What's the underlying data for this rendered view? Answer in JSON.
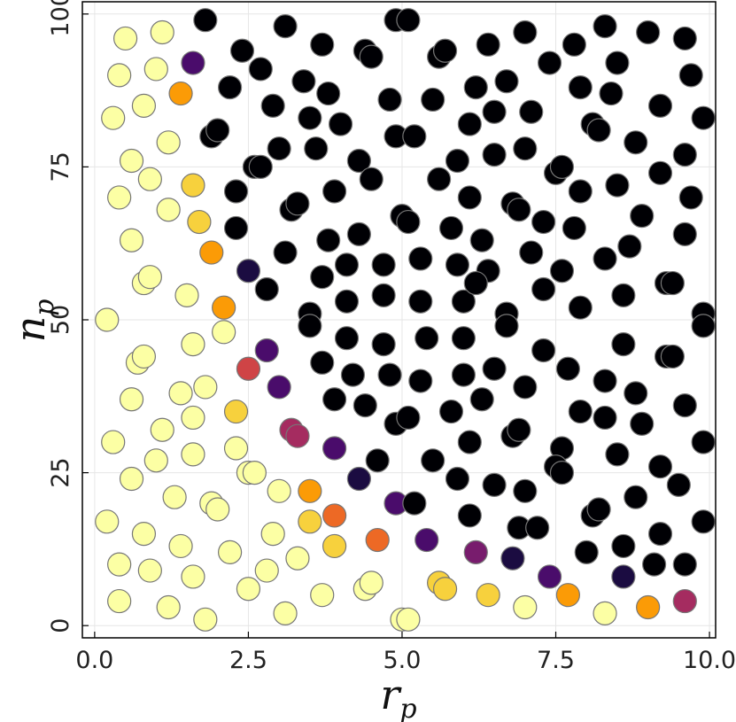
{
  "chart_data": {
    "type": "scatter",
    "title": "",
    "xlabel": {
      "base": "r",
      "sub": "p"
    },
    "ylabel": {
      "base": "n",
      "sub": "p"
    },
    "xlim": [
      -0.2,
      10.1
    ],
    "ylim": [
      -2,
      102
    ],
    "x_ticks": [
      0.0,
      2.5,
      5.0,
      7.5,
      10.0
    ],
    "x_tick_labels": [
      "0.0",
      "2.5",
      "5.0",
      "7.5",
      "10.0"
    ],
    "y_ticks": [
      0,
      25,
      50,
      75,
      100
    ],
    "y_tick_labels": [
      "0",
      "25",
      "50",
      "75",
      "100"
    ],
    "grid": true,
    "colormap": "inferno",
    "colormap_colors": [
      "#fcffa4",
      "#f7d13d",
      "#fb9b06",
      "#ed6925",
      "#cf4446",
      "#a52c60",
      "#781c6d",
      "#4a0c6b",
      "#1b0c41",
      "#000004"
    ],
    "marker_edge_color": "#777777",
    "points": [
      [
        0.5,
        96,
        0
      ],
      [
        1.1,
        97,
        0
      ],
      [
        1.8,
        99,
        9
      ],
      [
        3.1,
        98,
        9
      ],
      [
        4.9,
        99,
        9
      ],
      [
        5.1,
        99,
        9
      ],
      [
        7.0,
        97,
        9
      ],
      [
        8.3,
        98,
        9
      ],
      [
        9.0,
        97,
        9
      ],
      [
        9.6,
        96,
        9
      ],
      [
        0.4,
        90,
        0
      ],
      [
        1.0,
        91,
        0
      ],
      [
        1.6,
        92,
        7
      ],
      [
        2.4,
        94,
        9
      ],
      [
        2.7,
        91,
        9
      ],
      [
        3.4,
        89,
        9
      ],
      [
        3.7,
        95,
        9
      ],
      [
        4.4,
        94,
        9
      ],
      [
        4.5,
        93,
        9
      ],
      [
        5.6,
        93,
        9
      ],
      [
        5.7,
        94,
        9
      ],
      [
        6.4,
        95,
        9
      ],
      [
        6.7,
        89,
        9
      ],
      [
        7.4,
        92,
        9
      ],
      [
        7.8,
        95,
        9
      ],
      [
        8.5,
        92,
        9
      ],
      [
        9.7,
        90,
        9
      ],
      [
        0.3,
        83,
        0
      ],
      [
        0.8,
        85,
        0
      ],
      [
        1.4,
        87,
        2
      ],
      [
        2.2,
        88,
        9
      ],
      [
        2.9,
        85,
        9
      ],
      [
        3.5,
        83,
        9
      ],
      [
        3.8,
        87,
        9
      ],
      [
        4.0,
        82,
        9
      ],
      [
        4.8,
        86,
        9
      ],
      [
        5.5,
        86,
        9
      ],
      [
        6.2,
        88,
        9
      ],
      [
        6.5,
        84,
        9
      ],
      [
        7.1,
        84,
        9
      ],
      [
        7.9,
        88,
        9
      ],
      [
        8.1,
        82,
        9
      ],
      [
        8.4,
        87,
        9
      ],
      [
        9.2,
        85,
        9
      ],
      [
        9.9,
        83,
        9
      ],
      [
        1.2,
        79,
        0
      ],
      [
        1.9,
        80,
        9
      ],
      [
        2.0,
        81,
        9
      ],
      [
        0.6,
        76,
        0
      ],
      [
        3.0,
        78,
        9
      ],
      [
        3.6,
        78,
        9
      ],
      [
        4.3,
        76,
        9
      ],
      [
        4.9,
        80,
        9
      ],
      [
        5.2,
        80,
        9
      ],
      [
        5.9,
        76,
        9
      ],
      [
        6.1,
        82,
        9
      ],
      [
        6.5,
        77,
        9
      ],
      [
        7.0,
        78,
        9
      ],
      [
        7.5,
        74,
        9
      ],
      [
        7.6,
        75,
        9
      ],
      [
        8.2,
        81,
        9
      ],
      [
        8.8,
        79,
        9
      ],
      [
        9.2,
        74,
        9
      ],
      [
        9.6,
        77,
        9
      ],
      [
        0.4,
        70,
        0
      ],
      [
        0.9,
        73,
        0
      ],
      [
        1.6,
        72,
        1
      ],
      [
        2.3,
        71,
        9
      ],
      [
        2.6,
        75,
        9
      ],
      [
        2.7,
        75,
        9
      ],
      [
        3.2,
        68,
        9
      ],
      [
        3.3,
        69,
        9
      ],
      [
        3.9,
        71,
        9
      ],
      [
        4.5,
        73,
        9
      ],
      [
        5.0,
        67,
        9
      ],
      [
        5.1,
        66,
        9
      ],
      [
        5.6,
        73,
        9
      ],
      [
        6.1,
        70,
        9
      ],
      [
        6.8,
        69,
        9
      ],
      [
        6.9,
        68,
        9
      ],
      [
        7.3,
        66,
        9
      ],
      [
        7.9,
        71,
        9
      ],
      [
        8.5,
        72,
        9
      ],
      [
        8.9,
        67,
        9
      ],
      [
        9.7,
        70,
        9
      ],
      [
        0.6,
        63,
        0
      ],
      [
        1.2,
        68,
        0
      ],
      [
        1.7,
        66,
        1
      ],
      [
        1.9,
        61,
        2
      ],
      [
        2.3,
        65,
        9
      ],
      [
        2.5,
        58,
        8
      ],
      [
        2.8,
        55,
        9
      ],
      [
        3.1,
        61,
        9
      ],
      [
        3.8,
        63,
        9
      ],
      [
        4.3,
        64,
        9
      ],
      [
        4.1,
        59,
        9
      ],
      [
        4.7,
        59,
        9
      ],
      [
        5.3,
        60,
        9
      ],
      [
        5.8,
        65,
        9
      ],
      [
        5.9,
        59,
        9
      ],
      [
        6.3,
        63,
        9
      ],
      [
        6.4,
        58,
        9
      ],
      [
        7.1,
        61,
        9
      ],
      [
        7.6,
        58,
        9
      ],
      [
        7.8,
        65,
        9
      ],
      [
        8.3,
        60,
        9
      ],
      [
        8.7,
        62,
        9
      ],
      [
        9.3,
        56,
        9
      ],
      [
        9.4,
        56,
        9
      ],
      [
        9.6,
        64,
        9
      ],
      [
        0.8,
        56,
        0
      ],
      [
        0.9,
        57,
        0
      ],
      [
        1.5,
        54,
        0
      ],
      [
        0.2,
        50,
        0
      ],
      [
        2.1,
        52,
        2
      ],
      [
        2.1,
        48,
        0
      ],
      [
        3.5,
        51,
        9
      ],
      [
        3.5,
        49,
        9
      ],
      [
        3.7,
        57,
        9
      ],
      [
        4.1,
        53,
        9
      ],
      [
        4.7,
        54,
        9
      ],
      [
        5.3,
        53,
        9
      ],
      [
        6.0,
        53,
        9
      ],
      [
        6.2,
        56,
        9
      ],
      [
        6.7,
        51,
        9
      ],
      [
        6.7,
        49,
        9
      ],
      [
        7.3,
        55,
        9
      ],
      [
        7.9,
        52,
        9
      ],
      [
        8.6,
        54,
        9
      ],
      [
        9.9,
        51,
        9
      ],
      [
        9.9,
        49,
        9
      ],
      [
        0.7,
        43,
        0
      ],
      [
        0.8,
        44,
        0
      ],
      [
        1.6,
        46,
        0
      ],
      [
        2.5,
        42,
        4
      ],
      [
        2.8,
        45,
        7
      ],
      [
        3.0,
        39,
        7
      ],
      [
        3.7,
        43,
        9
      ],
      [
        4.1,
        47,
        9
      ],
      [
        4.2,
        41,
        9
      ],
      [
        4.7,
        46,
        9
      ],
      [
        4.8,
        41,
        9
      ],
      [
        5.4,
        47,
        9
      ],
      [
        5.3,
        40,
        9
      ],
      [
        6.0,
        47,
        9
      ],
      [
        6.0,
        41,
        9
      ],
      [
        6.5,
        42,
        9
      ],
      [
        7.0,
        39,
        9
      ],
      [
        7.3,
        45,
        9
      ],
      [
        7.7,
        42,
        9
      ],
      [
        8.3,
        40,
        9
      ],
      [
        8.6,
        46,
        9
      ],
      [
        8.8,
        38,
        9
      ],
      [
        9.3,
        44,
        9
      ],
      [
        9.4,
        44,
        9
      ],
      [
        0.6,
        37,
        0
      ],
      [
        1.4,
        38,
        0
      ],
      [
        1.8,
        39,
        0
      ],
      [
        1.6,
        34,
        0
      ],
      [
        2.3,
        35,
        1
      ],
      [
        1.1,
        32,
        0
      ],
      [
        3.2,
        32,
        5
      ],
      [
        3.3,
        31,
        5
      ],
      [
        3.9,
        37,
        9
      ],
      [
        4.4,
        36,
        9
      ],
      [
        4.9,
        33,
        9
      ],
      [
        5.1,
        34,
        9
      ],
      [
        5.8,
        35,
        9
      ],
      [
        6.3,
        37,
        9
      ],
      [
        6.1,
        30,
        9
      ],
      [
        6.8,
        31,
        9
      ],
      [
        6.9,
        32,
        9
      ],
      [
        7.6,
        29,
        9
      ],
      [
        7.9,
        35,
        9
      ],
      [
        8.3,
        34,
        9
      ],
      [
        8.9,
        33,
        9
      ],
      [
        9.6,
        36,
        9
      ],
      [
        9.9,
        30,
        9
      ],
      [
        0.3,
        30,
        0
      ],
      [
        1.0,
        27,
        0
      ],
      [
        1.6,
        28,
        0
      ],
      [
        2.3,
        29,
        0
      ],
      [
        2.5,
        25,
        0
      ],
      [
        2.6,
        25,
        0
      ],
      [
        3.9,
        29,
        7
      ],
      [
        4.3,
        24,
        8
      ],
      [
        4.6,
        27,
        9
      ],
      [
        5.5,
        27,
        9
      ],
      [
        5.9,
        24,
        9
      ],
      [
        6.5,
        23,
        9
      ],
      [
        7.0,
        22,
        9
      ],
      [
        7.5,
        26,
        9
      ],
      [
        7.6,
        25,
        9
      ],
      [
        8.5,
        28,
        9
      ],
      [
        9.2,
        26,
        9
      ],
      [
        9.5,
        23,
        9
      ],
      [
        0.6,
        24,
        0
      ],
      [
        1.3,
        21,
        0
      ],
      [
        0.2,
        17,
        0
      ],
      [
        1.9,
        20,
        0
      ],
      [
        2.0,
        19,
        0
      ],
      [
        2.9,
        15,
        0
      ],
      [
        3.0,
        22,
        0
      ],
      [
        3.5,
        22,
        2
      ],
      [
        3.5,
        17,
        1
      ],
      [
        3.9,
        18,
        3
      ],
      [
        4.9,
        20,
        7
      ],
      [
        5.2,
        20,
        9
      ],
      [
        6.1,
        18,
        9
      ],
      [
        6.9,
        16,
        9
      ],
      [
        7.2,
        16,
        9
      ],
      [
        8.1,
        18,
        9
      ],
      [
        8.2,
        19,
        9
      ],
      [
        8.8,
        21,
        9
      ],
      [
        9.9,
        17,
        9
      ],
      [
        0.8,
        15,
        0
      ],
      [
        1.4,
        13,
        0
      ],
      [
        0.4,
        10,
        0
      ],
      [
        0.9,
        9,
        0
      ],
      [
        1.6,
        8,
        0
      ],
      [
        2.2,
        12,
        0
      ],
      [
        2.8,
        9,
        0
      ],
      [
        3.3,
        11,
        0
      ],
      [
        3.9,
        13,
        1
      ],
      [
        4.6,
        14,
        3
      ],
      [
        5.4,
        14,
        7
      ],
      [
        6.2,
        12,
        6
      ],
      [
        6.8,
        11,
        8
      ],
      [
        7.4,
        8,
        7
      ],
      [
        8.0,
        12,
        9
      ],
      [
        8.6,
        13,
        9
      ],
      [
        8.6,
        8,
        8
      ],
      [
        9.1,
        10,
        9
      ],
      [
        9.2,
        15,
        9
      ],
      [
        9.6,
        10,
        9
      ],
      [
        0.4,
        4,
        0
      ],
      [
        1.2,
        3,
        0
      ],
      [
        1.8,
        1,
        0
      ],
      [
        2.5,
        6,
        0
      ],
      [
        3.1,
        2,
        0
      ],
      [
        3.7,
        5,
        0
      ],
      [
        4.4,
        6,
        0
      ],
      [
        4.5,
        7,
        0
      ],
      [
        5.0,
        1,
        0
      ],
      [
        5.1,
        1,
        0
      ],
      [
        5.6,
        7,
        1
      ],
      [
        5.7,
        6,
        1
      ],
      [
        6.4,
        5,
        1
      ],
      [
        7.0,
        3,
        0
      ],
      [
        7.7,
        5,
        2
      ],
      [
        8.3,
        2,
        0
      ],
      [
        9.0,
        3,
        2
      ],
      [
        9.6,
        4,
        5
      ]
    ]
  }
}
